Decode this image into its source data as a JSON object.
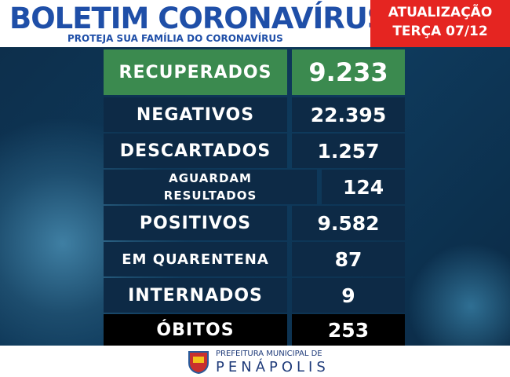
{
  "header": {
    "title": "BOLETIM CORONAVÍRUS",
    "subtitle": "PROTEJA SUA FAMÍLIA DO CORONAVÍRUS",
    "update_label": "ATUALIZAÇÃO",
    "update_date": "TERÇA 07/12"
  },
  "table": {
    "rows": [
      [
        "RECUPERADOS",
        "9.233"
      ],
      [
        "NEGATIVOS",
        "22.395"
      ],
      [
        "DESCARTADOS",
        "1.257"
      ],
      [
        "AGUARDAM RESULTADOS",
        "124"
      ],
      [
        "POSITIVOS",
        "9.582"
      ],
      [
        "EM QUARENTENA",
        "87"
      ],
      [
        "INTERNADOS",
        "9"
      ],
      [
        "ÓBITOS",
        "253"
      ]
    ]
  },
  "footer": {
    "line1": "PREFEITURA MUNICIPAL DE",
    "line2": "PENÁPOLIS"
  }
}
